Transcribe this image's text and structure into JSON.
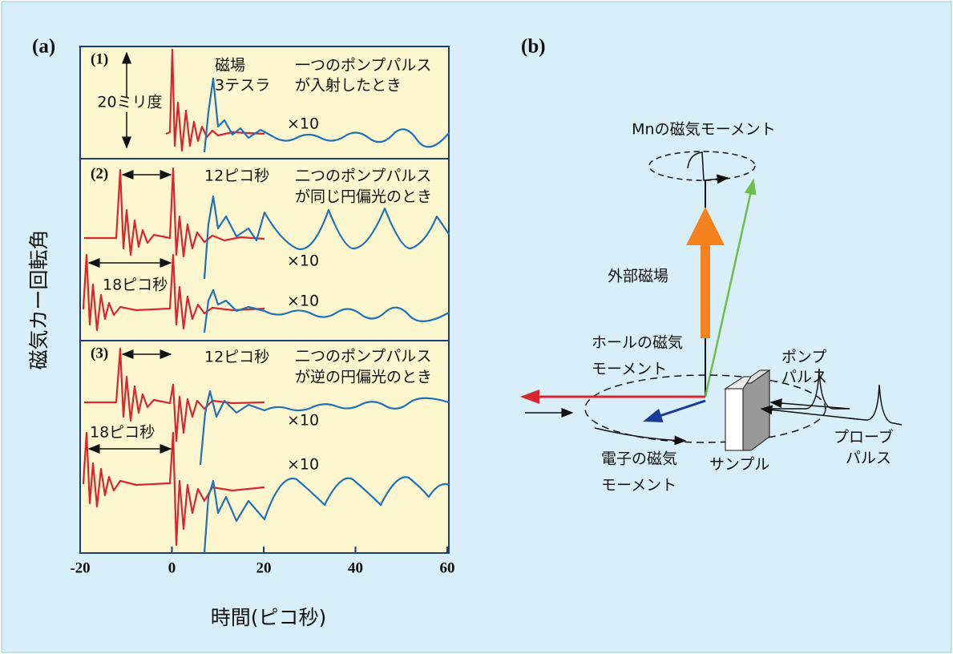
{
  "panel_a": {
    "label": "(a)",
    "y_label": "磁気カー回転角",
    "x_label": "時間(ピコ秒)",
    "xlim": [
      -20,
      60
    ],
    "xticks": [
      -20,
      0,
      20,
      40,
      60
    ],
    "sections": [
      {
        "label": "(1)",
        "scale_bar": "20ミリ度",
        "field": [
          "磁場",
          "3テスラ"
        ],
        "caption": [
          "一つのポンプパルス",
          "が入射したとき"
        ],
        "multipliers": [
          "×10"
        ]
      },
      {
        "label": "(2)",
        "interval_top": "12ピコ秒",
        "interval_bottom": "18ピコ秒",
        "caption": [
          "二つのポンプパルス",
          "が同じ円偏光のとき"
        ],
        "multipliers": [
          "×10",
          "×10"
        ]
      },
      {
        "label": "(3)",
        "interval_top": "12ピコ秒",
        "interval_bottom": "18ピコ秒",
        "caption": [
          "二つのポンプパルス",
          "が逆の円偏光のとき"
        ],
        "multipliers": [
          "×10",
          "×10"
        ]
      }
    ]
  },
  "panel_b": {
    "label": "(b)",
    "mn": "Mnの磁気モーメント",
    "field": "外部磁場",
    "hole": [
      "ホールの磁気",
      "モーメント"
    ],
    "electron": [
      "電子の磁気",
      "モーメント"
    ],
    "sample": "サンプル",
    "pump": [
      "ポンプ",
      "パルス"
    ],
    "probe": [
      "プローブ",
      "パルス"
    ]
  }
}
